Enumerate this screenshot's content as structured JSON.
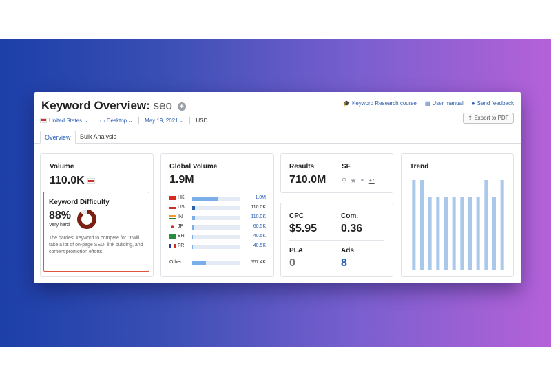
{
  "header": {
    "title": "Keyword Overview:",
    "keyword": "seo",
    "links": [
      {
        "icon": "graduation-icon",
        "label": "Keyword Research course"
      },
      {
        "icon": "book-icon",
        "label": "User manual"
      },
      {
        "icon": "chat-icon",
        "label": "Send feedback"
      }
    ],
    "export_label": "Export to PDF"
  },
  "filters": {
    "database": "United States",
    "device": "Desktop",
    "date": "May 19, 2021",
    "currency": "USD"
  },
  "tabs": [
    {
      "label": "Overview",
      "active": true
    },
    {
      "label": "Bulk Analysis",
      "active": false
    }
  ],
  "volume": {
    "label": "Volume",
    "value": "110.0K"
  },
  "keyword_difficulty": {
    "label": "Keyword Difficulty",
    "value": "88%",
    "percent": 88,
    "level": "Very hard",
    "description": "The hardest keyword to compete for. It will take a lot of on-page SEO, link building, and content promotion efforts."
  },
  "global_volume": {
    "label": "Global Volume",
    "value": "1.9M",
    "rows": [
      {
        "code": "HK",
        "value": "1.0M",
        "fill": 0.53
      },
      {
        "code": "US",
        "value": "110.0K",
        "fill": 0.06
      },
      {
        "code": "IN",
        "value": "110.0K",
        "fill": 0.06
      },
      {
        "code": "JP",
        "value": "60.5K",
        "fill": 0.03
      },
      {
        "code": "BR",
        "value": "40.5K",
        "fill": 0.02
      },
      {
        "code": "FR",
        "value": "40.5K",
        "fill": 0.02
      }
    ],
    "other": {
      "label": "Other",
      "value": "557.4K",
      "fill": 0.29
    }
  },
  "results": {
    "label": "Results",
    "value": "710.0M"
  },
  "sf": {
    "label": "SF",
    "more": "+7"
  },
  "cpc": {
    "label": "CPC",
    "value": "$5.95"
  },
  "com": {
    "label": "Com.",
    "value": "0.36"
  },
  "pla": {
    "label": "PLA",
    "value": "0"
  },
  "ads": {
    "label": "Ads",
    "value": "8"
  },
  "trend": {
    "label": "Trend",
    "values": [
      1.0,
      1.0,
      0.81,
      0.81,
      0.81,
      0.81,
      0.81,
      0.81,
      0.81,
      1.0,
      0.81,
      1.0
    ]
  },
  "colors": {
    "accent": "#2d5fb0",
    "kd_ring": "#7a1f12",
    "trend_bar": "#a9c8ea",
    "kd_border": "#e0543f"
  }
}
